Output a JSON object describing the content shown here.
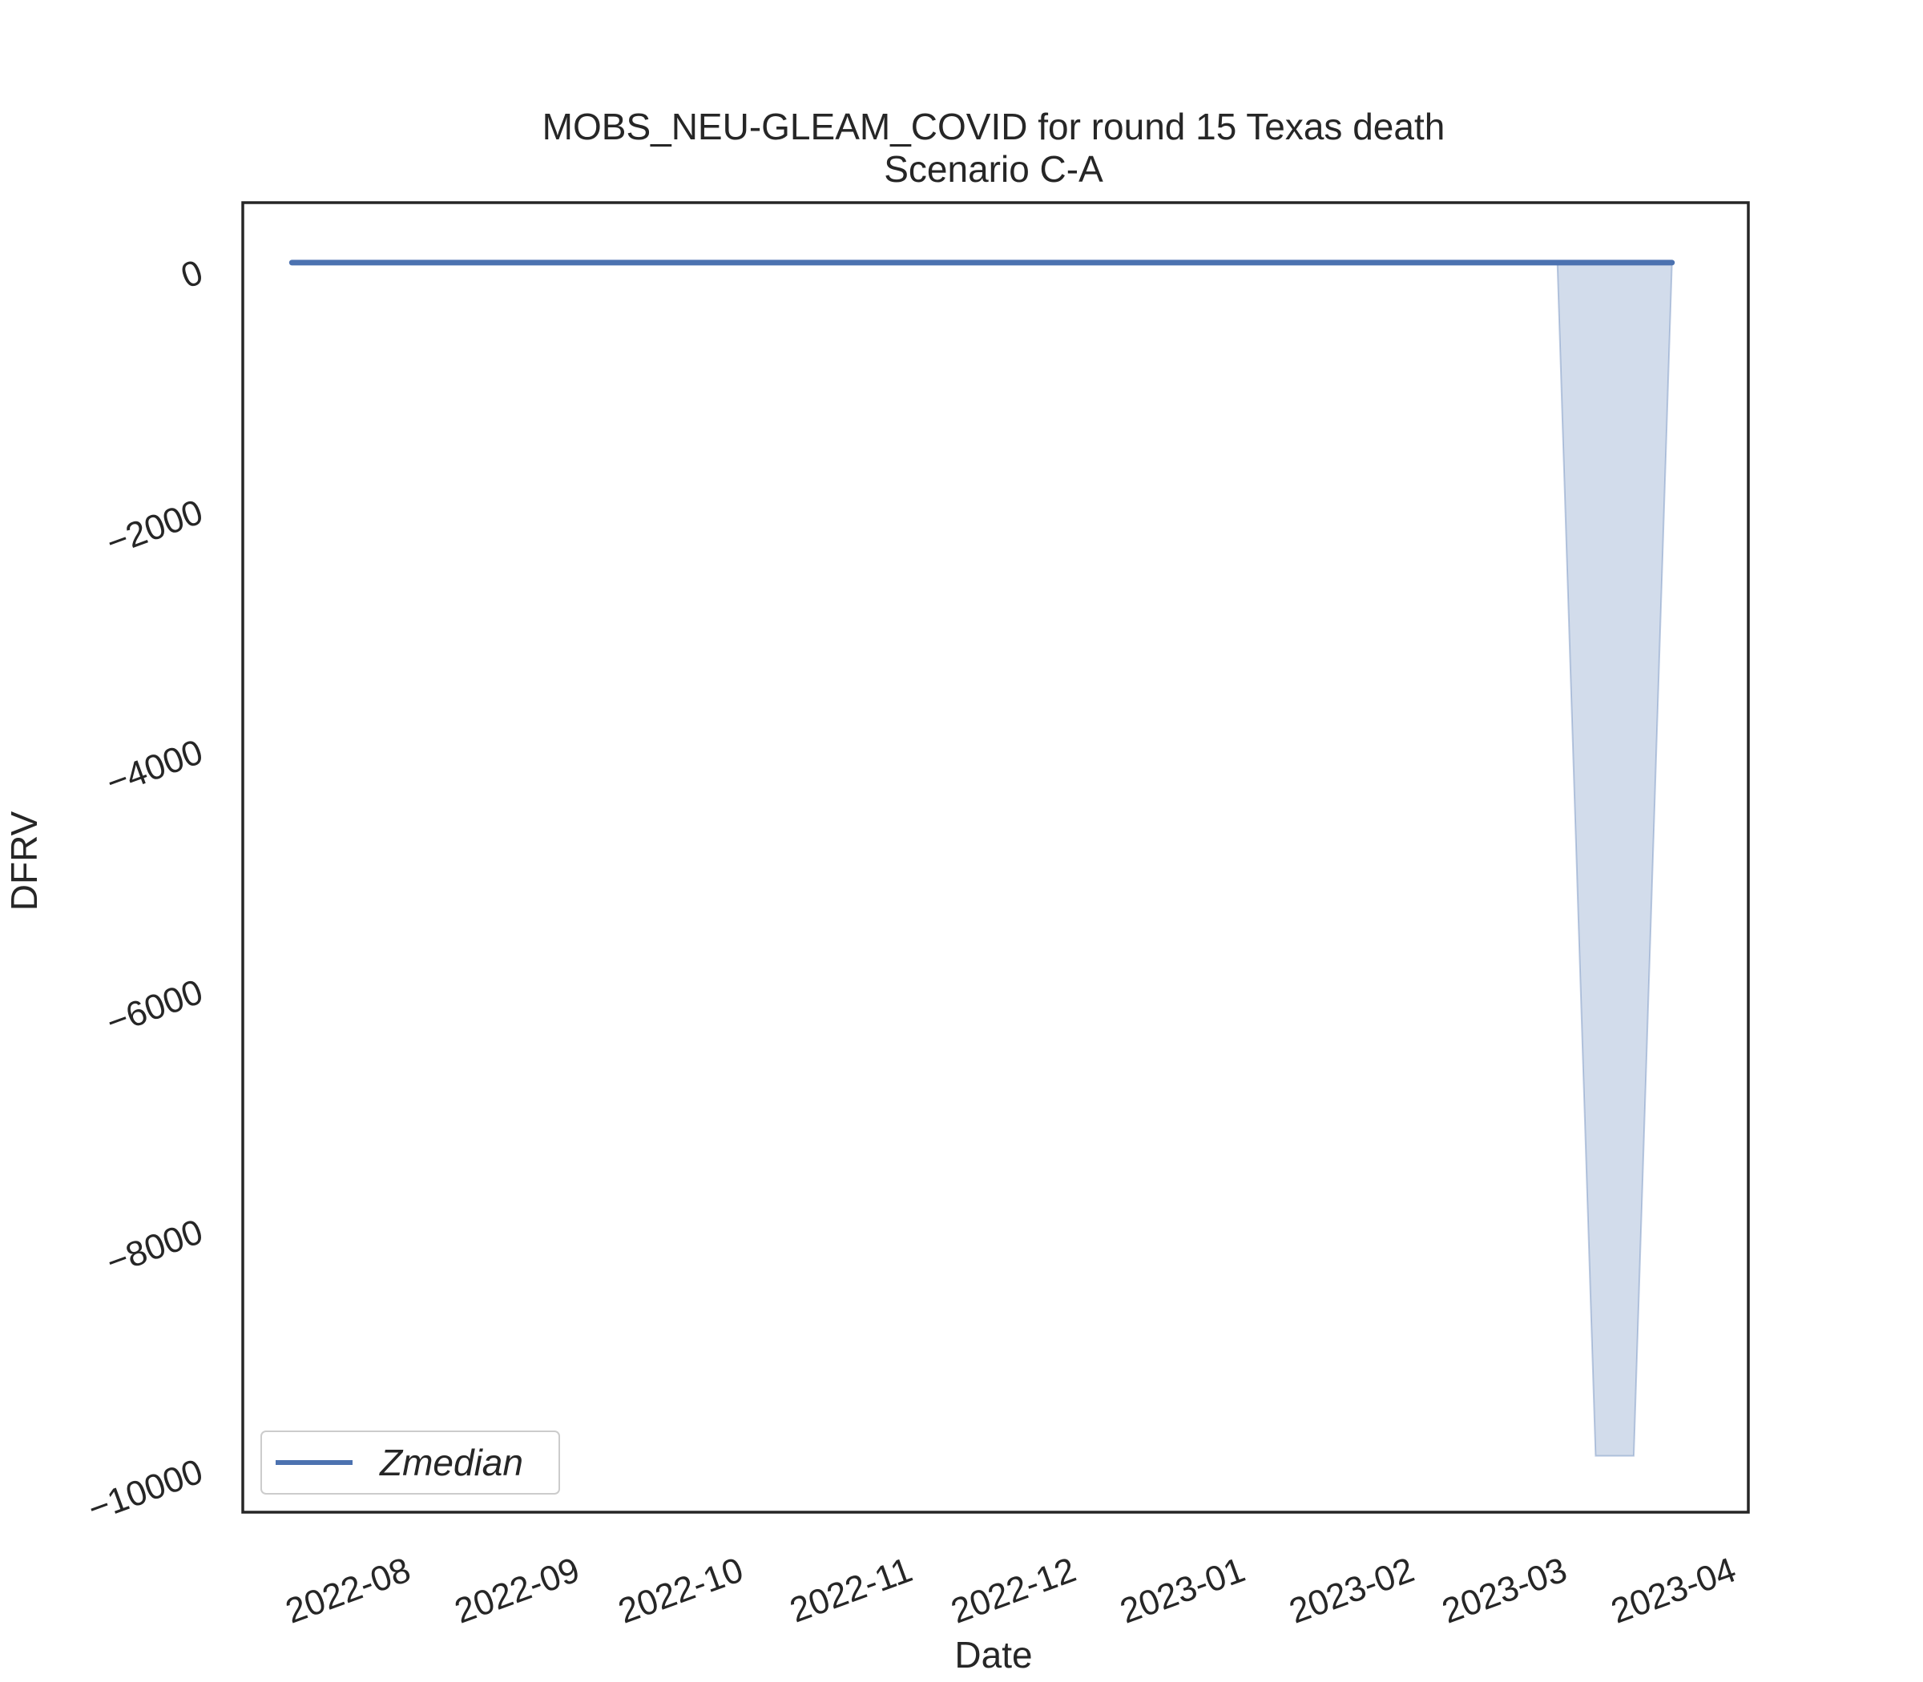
{
  "chart_data": {
    "type": "line",
    "title": "MOBS_NEU-GLEAM_COVID for round 15 Texas death",
    "subtitle": "Scenario C-A",
    "xlabel": "Date",
    "ylabel": "DFRV",
    "x_ticks": [
      "2022-08",
      "2022-09",
      "2022-10",
      "2022-11",
      "2022-12",
      "2023-01",
      "2023-02",
      "2023-03",
      "2023-04"
    ],
    "y_ticks": [
      0,
      -2000,
      -4000,
      -6000,
      -8000,
      -10000
    ],
    "y_tick_labels": [
      "0",
      "−2000",
      "−4000",
      "−6000",
      "−8000",
      "−10000"
    ],
    "xlim": [
      "2022-07-07",
      "2023-04-09"
    ],
    "ylim": [
      -10420,
      500
    ],
    "grid": false,
    "legend": {
      "location": "lower left",
      "entries": [
        "Zmedian"
      ]
    },
    "series": [
      {
        "name": "Zmedian",
        "color": "#4c72b0",
        "x": [
          "2022-07-16",
          "2023-03-26"
        ],
        "y": [
          0,
          0
        ]
      }
    ],
    "band": {
      "color": "#4c72b0",
      "opacity": 0.25,
      "x": [
        "2023-03-05",
        "2023-03-12",
        "2023-03-19",
        "2023-03-26"
      ],
      "lower": [
        0,
        -9950,
        -9950,
        0
      ],
      "upper": [
        0,
        0,
        0,
        0
      ]
    }
  }
}
